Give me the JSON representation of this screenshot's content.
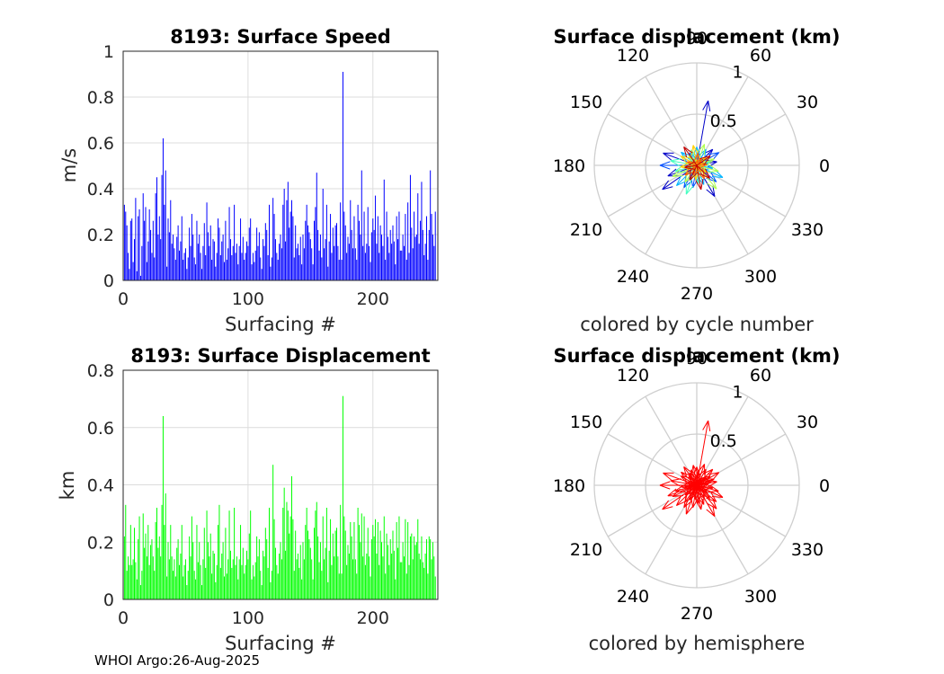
{
  "figure": {
    "footer": "WHOI Argo:26-Aug-2025"
  },
  "chart_data": [
    {
      "id": "speed",
      "type": "bar",
      "title": "8193: Surface Speed",
      "xlabel": "Surfacing #",
      "ylabel": "m/s",
      "color": "#0000ff",
      "xlim": [
        0,
        252
      ],
      "ylim": [
        0,
        1
      ],
      "xticks": [
        "0",
        "100",
        "200"
      ],
      "yticks": [
        "0",
        "0.2",
        "0.4",
        "0.6",
        "0.8",
        "1"
      ],
      "grid": true,
      "series": [
        {
          "name": "speed",
          "values": [
            0.33,
            0.3,
            0.24,
            0.12,
            0.05,
            0.26,
            0.27,
            0.08,
            0.18,
            0.36,
            0.04,
            0.28,
            0.31,
            0.02,
            0.15,
            0.38,
            0.26,
            0.32,
            0.08,
            0.17,
            0.31,
            0.22,
            0.12,
            0.26,
            0.1,
            0.38,
            0.45,
            0.2,
            0.28,
            0.18,
            0.46,
            0.62,
            0.33,
            0.48,
            0.06,
            0.27,
            0.21,
            0.35,
            0.16,
            0.2,
            0.14,
            0.09,
            0.19,
            0.24,
            0.13,
            0.17,
            0.28,
            0.09,
            0.12,
            0.14,
            0.05,
            0.1,
            0.23,
            0.15,
            0.29,
            0.2,
            0.1,
            0.07,
            0.26,
            0.16,
            0.2,
            0.12,
            0.05,
            0.15,
            0.25,
            0.11,
            0.34,
            0.21,
            0.15,
            0.24,
            0.09,
            0.18,
            0.17,
            0.06,
            0.12,
            0.27,
            0.23,
            0.11,
            0.17,
            0.2,
            0.08,
            0.26,
            0.09,
            0.14,
            0.32,
            0.18,
            0.11,
            0.15,
            0.33,
            0.12,
            0.16,
            0.07,
            0.15,
            0.27,
            0.12,
            0.19,
            0.09,
            0.12,
            0.17,
            0.15,
            0.23,
            0.27,
            0.07,
            0.12,
            0.08,
            0.13,
            0.23,
            0.15,
            0.21,
            0.1,
            0.05,
            0.18,
            0.15,
            0.25,
            0.22,
            0.11,
            0.33,
            0.06,
            0.1,
            0.36,
            0.29,
            0.18,
            0.12,
            0.09,
            0.16,
            0.2,
            0.14,
            0.33,
            0.4,
            0.17,
            0.35,
            0.43,
            0.23,
            0.3,
            0.35,
            0.28,
            0.1,
            0.24,
            0.14,
            0.16,
            0.11,
            0.19,
            0.07,
            0.2,
            0.14,
            0.26,
            0.33,
            0.24,
            0.21,
            0.18,
            0.14,
            0.07,
            0.26,
            0.32,
            0.47,
            0.22,
            0.13,
            0.2,
            0.1,
            0.4,
            0.14,
            0.18,
            0.33,
            0.06,
            0.17,
            0.29,
            0.12,
            0.23,
            0.15,
            0.24,
            0.25,
            0.15,
            0.09,
            0.34,
            0.09,
            0.91,
            0.3,
            0.24,
            0.12,
            0.19,
            0.16,
            0.35,
            0.22,
            0.14,
            0.28,
            0.14,
            0.09,
            0.33,
            0.26,
            0.2,
            0.48,
            0.15,
            0.3,
            0.12,
            0.16,
            0.32,
            0.15,
            0.08,
            0.21,
            0.27,
            0.22,
            0.37,
            0.16,
            0.28,
            0.12,
            0.24,
            0.2,
            0.15,
            0.44,
            0.09,
            0.3,
            0.19,
            0.12,
            0.22,
            0.16,
            0.24,
            0.17,
            0.07,
            0.28,
            0.18,
            0.3,
            0.13,
            0.13,
            0.2,
            0.15,
            0.29,
            0.09,
            0.34,
            0.12,
            0.46,
            0.23,
            0.14,
            0.3,
            0.19,
            0.2,
            0.38,
            0.16,
            0.26,
            0.43,
            0.22,
            0.11,
            0.16,
            0.28,
            0.09,
            0.22,
            0.48,
            0.29,
            0.2,
            0.15,
            0.3
          ]
        }
      ]
    },
    {
      "id": "displacement",
      "type": "bar",
      "title": "8193: Surface Displacement",
      "xlabel": "Surfacing #",
      "ylabel": "km",
      "color": "#00ff00",
      "xlim": [
        0,
        252
      ],
      "ylim": [
        0,
        0.8
      ],
      "xticks": [
        "0",
        "100",
        "200"
      ],
      "yticks": [
        "0",
        "0.2",
        "0.4",
        "0.6",
        "0.8"
      ],
      "grid": true,
      "series": [
        {
          "name": "displacement",
          "values": [
            0.22,
            0.33,
            0.1,
            0.15,
            0.12,
            0.26,
            0.12,
            0.14,
            0.25,
            0.13,
            0.07,
            0.21,
            0.29,
            0.05,
            0.1,
            0.3,
            0.18,
            0.23,
            0.15,
            0.26,
            0.12,
            0.19,
            0.21,
            0.15,
            0.1,
            0.27,
            0.32,
            0.18,
            0.22,
            0.15,
            0.33,
            0.64,
            0.26,
            0.37,
            0.08,
            0.2,
            0.14,
            0.26,
            0.15,
            0.1,
            0.14,
            0.08,
            0.18,
            0.21,
            0.12,
            0.16,
            0.26,
            0.08,
            0.12,
            0.14,
            0.05,
            0.1,
            0.22,
            0.15,
            0.29,
            0.2,
            0.1,
            0.07,
            0.26,
            0.13,
            0.2,
            0.12,
            0.05,
            0.14,
            0.25,
            0.11,
            0.31,
            0.2,
            0.15,
            0.23,
            0.09,
            0.17,
            0.16,
            0.06,
            0.12,
            0.26,
            0.33,
            0.11,
            0.16,
            0.2,
            0.08,
            0.25,
            0.09,
            0.14,
            0.31,
            0.17,
            0.11,
            0.14,
            0.32,
            0.12,
            0.15,
            0.07,
            0.14,
            0.26,
            0.12,
            0.18,
            0.09,
            0.12,
            0.17,
            0.14,
            0.23,
            0.31,
            0.07,
            0.12,
            0.08,
            0.13,
            0.22,
            0.15,
            0.21,
            0.1,
            0.05,
            0.17,
            0.15,
            0.25,
            0.21,
            0.11,
            0.32,
            0.06,
            0.1,
            0.47,
            0.28,
            0.18,
            0.12,
            0.09,
            0.16,
            0.2,
            0.14,
            0.32,
            0.39,
            0.17,
            0.34,
            0.31,
            0.23,
            0.29,
            0.43,
            0.28,
            0.1,
            0.24,
            0.14,
            0.16,
            0.11,
            0.19,
            0.07,
            0.2,
            0.14,
            0.26,
            0.32,
            0.24,
            0.21,
            0.18,
            0.14,
            0.07,
            0.25,
            0.31,
            0.34,
            0.22,
            0.13,
            0.2,
            0.1,
            0.29,
            0.14,
            0.18,
            0.32,
            0.06,
            0.17,
            0.28,
            0.12,
            0.23,
            0.15,
            0.24,
            0.25,
            0.15,
            0.09,
            0.33,
            0.09,
            0.71,
            0.29,
            0.24,
            0.12,
            0.19,
            0.16,
            0.27,
            0.22,
            0.14,
            0.27,
            0.14,
            0.09,
            0.32,
            0.26,
            0.2,
            0.3,
            0.15,
            0.29,
            0.12,
            0.16,
            0.25,
            0.15,
            0.08,
            0.21,
            0.26,
            0.22,
            0.28,
            0.16,
            0.27,
            0.12,
            0.24,
            0.2,
            0.15,
            0.29,
            0.09,
            0.23,
            0.19,
            0.12,
            0.21,
            0.16,
            0.24,
            0.17,
            0.07,
            0.27,
            0.18,
            0.29,
            0.13,
            0.13,
            0.2,
            0.15,
            0.28,
            0.09,
            0.27,
            0.12,
            0.22,
            0.23,
            0.14,
            0.22,
            0.19,
            0.2,
            0.28,
            0.16,
            0.14,
            0.22,
            0.13,
            0.11,
            0.16,
            0.21,
            0.09,
            0.22,
            0.21,
            0.14,
            0.2,
            0.15,
            0.08
          ]
        }
      ]
    },
    {
      "id": "polar-cycle",
      "type": "polar-compass",
      "title": "Surface displacement (km)",
      "xlabel": "colored by cycle number",
      "rlim": [
        0,
        1
      ],
      "rticks": [
        "0.5",
        "1"
      ],
      "angle_labels": [
        "0",
        "30",
        "60",
        "90",
        "120",
        "150",
        "180",
        "210",
        "240",
        "270",
        "300",
        "330"
      ],
      "color_mode": "cycle",
      "colormap": [
        "#0000c8",
        "#0050ff",
        "#00b4ff",
        "#40ffc0",
        "#b0ff50",
        "#ffd000",
        "#ff6000",
        "#c00000"
      ],
      "vectors": [
        {
          "deg": 80,
          "r": 0.64
        },
        {
          "deg": 200,
          "r": 0.3
        },
        {
          "deg": 160,
          "r": 0.35
        },
        {
          "deg": 215,
          "r": 0.41
        },
        {
          "deg": 10,
          "r": 0.2
        },
        {
          "deg": 45,
          "r": 0.22
        },
        {
          "deg": 300,
          "r": 0.35
        },
        {
          "deg": 320,
          "r": 0.25
        },
        {
          "deg": 240,
          "r": 0.25
        },
        {
          "deg": 120,
          "r": 0.14
        },
        {
          "deg": 180,
          "r": 0.36
        },
        {
          "deg": 260,
          "r": 0.22
        },
        {
          "deg": 30,
          "r": 0.25
        },
        {
          "deg": 335,
          "r": 0.28
        },
        {
          "deg": 90,
          "r": 0.18
        },
        {
          "deg": 140,
          "r": 0.2
        },
        {
          "deg": 225,
          "r": 0.28
        },
        {
          "deg": 290,
          "r": 0.2
        },
        {
          "deg": 60,
          "r": 0.18
        },
        {
          "deg": 350,
          "r": 0.16
        },
        {
          "deg": 195,
          "r": 0.22
        },
        {
          "deg": 250,
          "r": 0.3
        },
        {
          "deg": 110,
          "r": 0.16
        },
        {
          "deg": 15,
          "r": 0.14
        },
        {
          "deg": 170,
          "r": 0.26
        },
        {
          "deg": 275,
          "r": 0.18
        },
        {
          "deg": 310,
          "r": 0.3
        },
        {
          "deg": 70,
          "r": 0.22
        },
        {
          "deg": 130,
          "r": 0.12
        },
        {
          "deg": 205,
          "r": 0.26
        },
        {
          "deg": 235,
          "r": 0.2
        },
        {
          "deg": 20,
          "r": 0.18
        },
        {
          "deg": 345,
          "r": 0.22
        },
        {
          "deg": 100,
          "r": 0.2
        },
        {
          "deg": 150,
          "r": 0.18
        },
        {
          "deg": 185,
          "r": 0.16
        },
        {
          "deg": 265,
          "r": 0.14
        },
        {
          "deg": 40,
          "r": 0.12
        },
        {
          "deg": 325,
          "r": 0.12
        },
        {
          "deg": 220,
          "r": 0.15
        },
        {
          "deg": 5,
          "r": 0.1
        },
        {
          "deg": 85,
          "r": 0.12
        },
        {
          "deg": 160,
          "r": 0.1
        },
        {
          "deg": 250,
          "r": 0.1
        },
        {
          "deg": 300,
          "r": 0.15
        },
        {
          "deg": 55,
          "r": 0.08
        },
        {
          "deg": 190,
          "r": 0.12
        },
        {
          "deg": 280,
          "r": 0.24
        },
        {
          "deg": 125,
          "r": 0.22
        },
        {
          "deg": 315,
          "r": 0.18
        },
        {
          "deg": 35,
          "r": 0.16
        },
        {
          "deg": 245,
          "r": 0.16
        }
      ]
    },
    {
      "id": "polar-hemisphere",
      "type": "polar-compass",
      "title": "Surface displacement (km)",
      "xlabel": "colored by hemisphere",
      "rlim": [
        0,
        1
      ],
      "rticks": [
        "0.5",
        "1"
      ],
      "angle_labels": [
        "0",
        "30",
        "60",
        "90",
        "120",
        "150",
        "180",
        "210",
        "240",
        "270",
        "300",
        "330"
      ],
      "color_mode": "single",
      "color": "#ff0000",
      "vectors": [
        {
          "deg": 80,
          "r": 0.64
        },
        {
          "deg": 200,
          "r": 0.3
        },
        {
          "deg": 160,
          "r": 0.35
        },
        {
          "deg": 215,
          "r": 0.41
        },
        {
          "deg": 10,
          "r": 0.2
        },
        {
          "deg": 45,
          "r": 0.22
        },
        {
          "deg": 300,
          "r": 0.35
        },
        {
          "deg": 320,
          "r": 0.25
        },
        {
          "deg": 240,
          "r": 0.25
        },
        {
          "deg": 120,
          "r": 0.14
        },
        {
          "deg": 180,
          "r": 0.36
        },
        {
          "deg": 260,
          "r": 0.22
        },
        {
          "deg": 30,
          "r": 0.25
        },
        {
          "deg": 335,
          "r": 0.28
        },
        {
          "deg": 90,
          "r": 0.18
        },
        {
          "deg": 140,
          "r": 0.2
        },
        {
          "deg": 225,
          "r": 0.28
        },
        {
          "deg": 290,
          "r": 0.2
        },
        {
          "deg": 60,
          "r": 0.18
        },
        {
          "deg": 350,
          "r": 0.16
        },
        {
          "deg": 195,
          "r": 0.22
        },
        {
          "deg": 250,
          "r": 0.3
        },
        {
          "deg": 110,
          "r": 0.16
        },
        {
          "deg": 15,
          "r": 0.14
        },
        {
          "deg": 170,
          "r": 0.26
        },
        {
          "deg": 275,
          "r": 0.18
        },
        {
          "deg": 310,
          "r": 0.3
        },
        {
          "deg": 70,
          "r": 0.22
        },
        {
          "deg": 130,
          "r": 0.12
        },
        {
          "deg": 205,
          "r": 0.26
        },
        {
          "deg": 235,
          "r": 0.2
        },
        {
          "deg": 20,
          "r": 0.18
        },
        {
          "deg": 345,
          "r": 0.22
        },
        {
          "deg": 100,
          "r": 0.2
        },
        {
          "deg": 150,
          "r": 0.18
        },
        {
          "deg": 185,
          "r": 0.16
        },
        {
          "deg": 265,
          "r": 0.14
        },
        {
          "deg": 40,
          "r": 0.12
        },
        {
          "deg": 325,
          "r": 0.12
        },
        {
          "deg": 220,
          "r": 0.15
        },
        {
          "deg": 5,
          "r": 0.1
        },
        {
          "deg": 85,
          "r": 0.12
        },
        {
          "deg": 160,
          "r": 0.1
        },
        {
          "deg": 250,
          "r": 0.1
        },
        {
          "deg": 300,
          "r": 0.15
        },
        {
          "deg": 55,
          "r": 0.08
        },
        {
          "deg": 190,
          "r": 0.12
        },
        {
          "deg": 280,
          "r": 0.24
        },
        {
          "deg": 125,
          "r": 0.22
        },
        {
          "deg": 315,
          "r": 0.18
        },
        {
          "deg": 35,
          "r": 0.16
        },
        {
          "deg": 245,
          "r": 0.16
        }
      ]
    }
  ]
}
